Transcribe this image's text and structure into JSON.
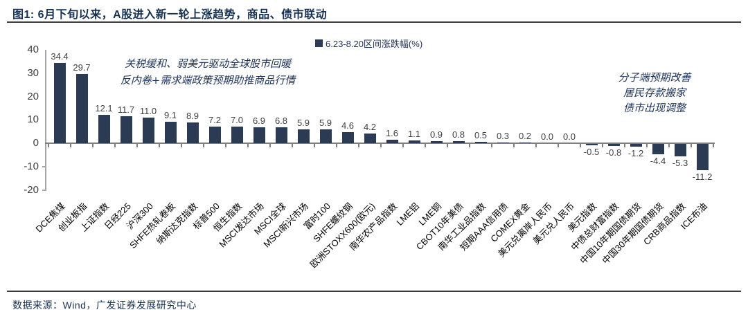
{
  "figure": {
    "title": "图1: 6月下旬以来，A股进入新一轮上涨趋势，商品、债市联动",
    "source": "数据来源：Wind，广发证券发展研究中心"
  },
  "annotations": {
    "left_line1": "关税缓和、弱美元驱动全球股市回暖",
    "left_line2": "反内卷+需求端政策预期助推商品行情",
    "right_line1": "分子端预期改善",
    "right_line2": "居民存款搬家",
    "right_line3": "债市出现调整"
  },
  "chart_data": {
    "type": "bar",
    "title": "图1: 6月下旬以来，A股进入新一轮上涨趋势，商品、债市联动",
    "legend": "6.23-8.20区间涨跌幅(%)",
    "legend_position": "top",
    "bar_color": "#2b3a55",
    "xlabel": "",
    "ylabel": "",
    "ylim": [
      -20,
      40
    ],
    "yticks": [
      40,
      30,
      20,
      10,
      0,
      -10,
      -20
    ],
    "grid": false,
    "categories": [
      "DCE焦煤",
      "创业板指",
      "上证指数",
      "日经225",
      "沪深300",
      "SHFE热轧卷板",
      "纳斯达克指数",
      "标普500",
      "恒生指数",
      "MSCI发达市场",
      "MSCI全球",
      "MSCI新兴市场",
      "富时100",
      "SHFE螺纹钢",
      "欧洲STOXX600(欧元)",
      "南华农产品指数",
      "LME铝",
      "LME铜",
      "CBOT10年美债",
      "南华工业品指数",
      "短期AAA信用债",
      "COMEX黄金",
      "美元兑离岸人民币",
      "美元兑人民币",
      "美元指数",
      "中债总财富指数",
      "中国10年期国债期货",
      "中国30年期国债期货",
      "CRB商品指数",
      "ICE布油"
    ],
    "values": [
      34.4,
      29.7,
      12.1,
      11.7,
      11.0,
      9.1,
      8.9,
      7.2,
      7.0,
      6.9,
      6.8,
      5.9,
      5.9,
      4.6,
      4.2,
      1.6,
      1.1,
      0.9,
      0.8,
      0.5,
      0.3,
      0.2,
      0.0,
      0.0,
      -0.5,
      -0.8,
      -1.2,
      -4.4,
      -5.3,
      -11.2
    ]
  }
}
